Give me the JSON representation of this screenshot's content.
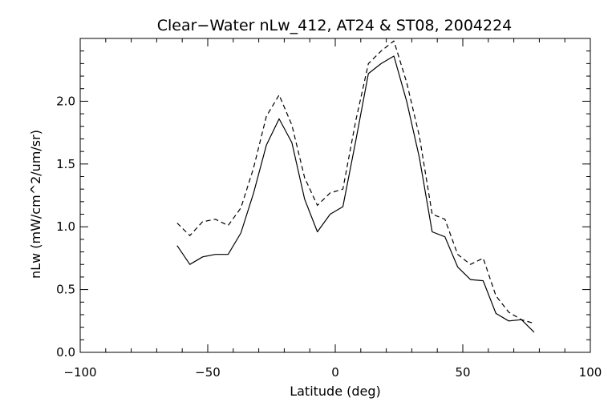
{
  "chart_data": {
    "type": "line",
    "title": "Clear−Water nLw_412, AT24 & ST08, 2004224",
    "xlabel": "Latitude (deg)",
    "ylabel": "nLw (mW/cm^2/um/sr)",
    "xlim": [
      -100,
      100
    ],
    "ylim": [
      0,
      2.5
    ],
    "x_ticks": [
      {
        "value": -100,
        "label": "−100"
      },
      {
        "value": -50,
        "label": "−50"
      },
      {
        "value": 0,
        "label": "0"
      },
      {
        "value": 50,
        "label": "50"
      },
      {
        "value": 100,
        "label": "100"
      }
    ],
    "y_ticks": [
      {
        "value": 0.0,
        "label": "0.0"
      },
      {
        "value": 0.5,
        "label": "0.5"
      },
      {
        "value": 1.0,
        "label": "1.0"
      },
      {
        "value": 1.5,
        "label": "1.5"
      },
      {
        "value": 2.0,
        "label": "2.0"
      }
    ],
    "x_minor_step": 10,
    "y_minor_step": 0.1,
    "grid": false,
    "series": [
      {
        "style": "solid",
        "x": [
          -62,
          -57,
          -52,
          -47,
          -42,
          -37,
          -32,
          -27,
          -22,
          -17,
          -12,
          -7,
          -2,
          3,
          8,
          13,
          18,
          23,
          28,
          33,
          38,
          43,
          48,
          53,
          58,
          63,
          68,
          73,
          78
        ],
        "y": [
          0.85,
          0.7,
          0.76,
          0.78,
          0.78,
          0.95,
          1.27,
          1.65,
          1.86,
          1.67,
          1.22,
          0.96,
          1.1,
          1.16,
          1.68,
          2.22,
          2.3,
          2.36,
          2.0,
          1.55,
          0.96,
          0.92,
          0.68,
          0.58,
          0.57,
          0.31,
          0.25,
          0.26,
          0.16
        ]
      },
      {
        "style": "dashed",
        "x": [
          -62,
          -57,
          -52,
          -47,
          -42,
          -37,
          -32,
          -27,
          -22,
          -17,
          -12,
          -7,
          -2,
          3,
          8,
          13,
          18,
          23,
          28,
          33,
          38,
          43,
          48,
          53,
          58,
          63,
          68,
          73,
          78
        ],
        "y": [
          1.03,
          0.93,
          1.04,
          1.06,
          1.01,
          1.15,
          1.47,
          1.88,
          2.05,
          1.81,
          1.39,
          1.17,
          1.27,
          1.3,
          1.84,
          2.3,
          2.4,
          2.48,
          2.15,
          1.72,
          1.1,
          1.06,
          0.78,
          0.7,
          0.75,
          0.45,
          0.32,
          0.26,
          0.23
        ]
      }
    ]
  }
}
